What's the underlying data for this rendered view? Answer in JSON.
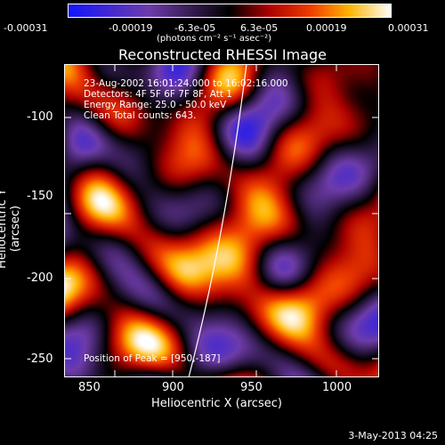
{
  "colorbar": {
    "ticks": [
      "-0.00031",
      "-0.00019",
      "-6.3e-05",
      "6.3e-05",
      "0.00019",
      "0.00031"
    ],
    "unit": "(photons cm⁻² s⁻¹ asec⁻²)"
  },
  "title": "Reconstructed RHESSI Image",
  "info": {
    "line1": "23-Aug-2002 16:01:24.000 to 16:02:16.000",
    "line2": "Detectors: 4F 5F 6F 7F 8F, Att 1",
    "line3": "Energy Range: 25.0 - 50.0 keV",
    "line4": "Clean     Total counts: 643.",
    "peak": "Position of Peak = [950,-187]"
  },
  "axes": {
    "ylabel": "Heliocentric Y (arcsec)",
    "xlabel": "Heliocentric X (arcsec)",
    "yticks": [
      "-100",
      "-150",
      "-200",
      "-250"
    ],
    "xticks": [
      "850",
      "900",
      "950",
      "1000"
    ]
  },
  "footer": {
    "date": "3-May-2013 04:25"
  }
}
